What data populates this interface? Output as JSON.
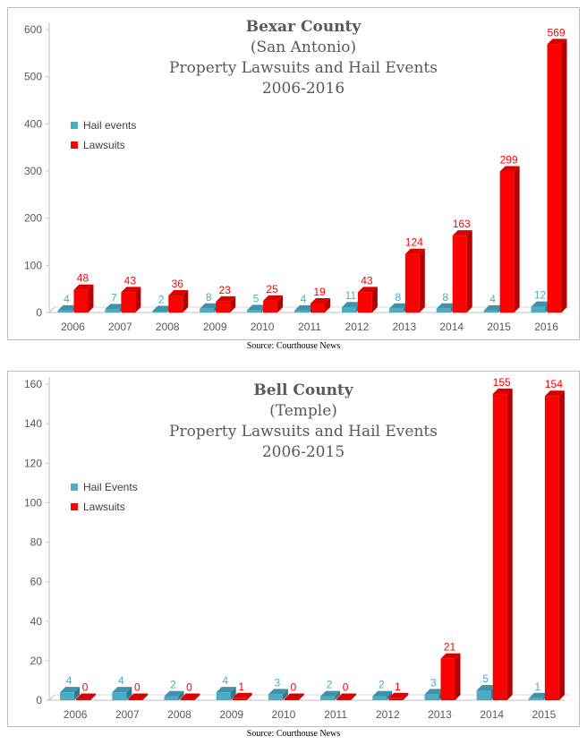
{
  "chart_data": [
    {
      "type": "bar",
      "title_lines": [
        "Bexar County",
        "(San Antonio)",
        "Property Lawsuits and Hail Events",
        "2006-2016"
      ],
      "categories": [
        "2006",
        "2007",
        "2008",
        "2009",
        "2010",
        "2011",
        "2012",
        "2013",
        "2014",
        "2015",
        "2016"
      ],
      "series": [
        {
          "name": "Hail events",
          "values": [
            4,
            7,
            2,
            8,
            5,
            4,
            11,
            8,
            8,
            4,
            12
          ],
          "color": "#4bacc6"
        },
        {
          "name": "Lawsuits",
          "values": [
            48,
            43,
            36,
            23,
            25,
            19,
            43,
            124,
            163,
            299,
            569
          ],
          "color": "#ff0000"
        }
      ],
      "yticks": [
        "0",
        "100",
        "200",
        "300",
        "400",
        "500",
        "600"
      ],
      "ylim": [
        0,
        600
      ],
      "legend": "top-left",
      "grid": false,
      "source": "Source: Courthouse News"
    },
    {
      "type": "bar",
      "title_lines": [
        "Bell County",
        "(Temple)",
        "Property Lawsuits and Hail Events",
        "2006-2015"
      ],
      "categories": [
        "2006",
        "2007",
        "2008",
        "2009",
        "2010",
        "2011",
        "2012",
        "2013",
        "2014",
        "2015"
      ],
      "series": [
        {
          "name": "Hail Events",
          "values": [
            4,
            4,
            2,
            4,
            3,
            2,
            2,
            3,
            5,
            1
          ],
          "color": "#4bacc6"
        },
        {
          "name": "Lawsuits",
          "values": [
            0,
            0,
            0,
            1,
            0,
            0,
            1,
            21,
            155,
            154
          ],
          "color": "#ff0000"
        }
      ],
      "yticks": [
        "0",
        "20",
        "40",
        "60",
        "80",
        "100",
        "120",
        "140",
        "160"
      ],
      "ylim": [
        0,
        160
      ],
      "legend": "top-left",
      "grid": false,
      "source": "Source: Courthouse News"
    }
  ]
}
